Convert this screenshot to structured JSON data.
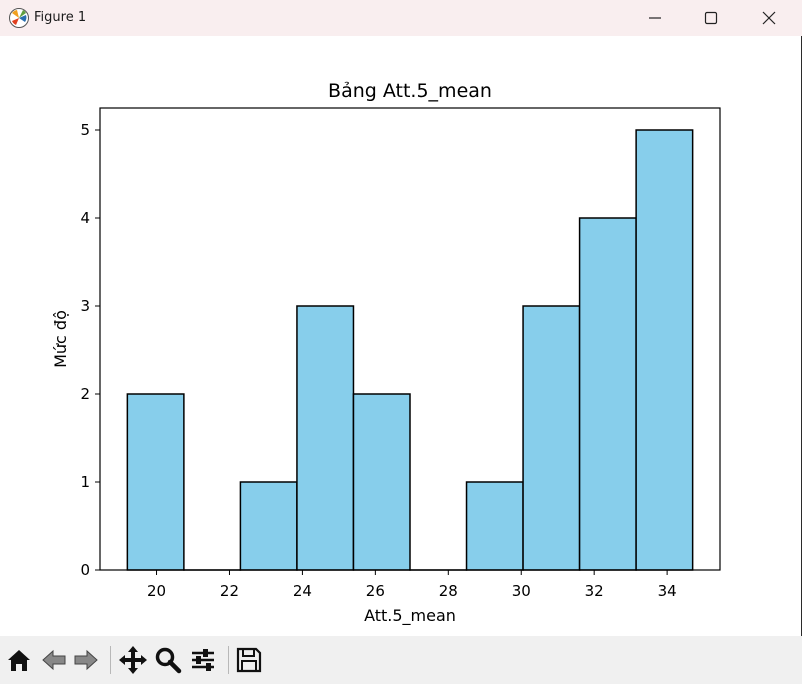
{
  "window": {
    "title": "Figure 1"
  },
  "toolbar": {
    "tools": [
      "home-icon",
      "back-arrow-icon",
      "forward-arrow-icon",
      "pan-move-icon",
      "zoom-magnifier-icon",
      "configure-subplots-icon",
      "save-floppy-icon"
    ]
  },
  "colors": {
    "bar_fill": "#87ceeb",
    "bar_edge": "#000000",
    "titlebar": "#f9eeef",
    "toolbar": "#f0f0f0"
  },
  "chart_data": {
    "type": "bar",
    "title": "Bảng Att.5_mean",
    "xlabel": "Att.5_mean",
    "ylabel": "Mức độ",
    "bins": [
      [
        19.2,
        20.75
      ],
      [
        20.75,
        22.3
      ],
      [
        22.3,
        23.85
      ],
      [
        23.85,
        25.4
      ],
      [
        25.4,
        26.95
      ],
      [
        26.95,
        28.5
      ],
      [
        28.5,
        30.05
      ],
      [
        30.05,
        31.6
      ],
      [
        31.6,
        33.15
      ],
      [
        33.15,
        34.7
      ]
    ],
    "values": [
      2,
      0,
      1,
      3,
      2,
      0,
      1,
      3,
      4,
      5
    ],
    "xticks": [
      20,
      22,
      24,
      26,
      28,
      30,
      32,
      34
    ],
    "yticks": [
      0,
      1,
      2,
      3,
      4,
      5
    ],
    "xlim": [
      18.45,
      35.45
    ],
    "ylim": [
      0,
      5.25
    ],
    "grid": false
  }
}
